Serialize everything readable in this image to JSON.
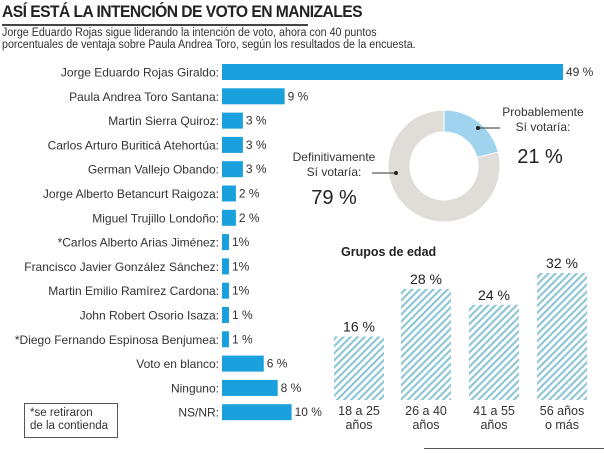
{
  "header": {
    "title": "ASÍ ESTÁ LA INTENCIÓN DE VOTO EN MANIZALES",
    "subtitle_line1": "Jorge Eduardo Rojas sigue liderando la intención de voto, ahora con 40 puntos",
    "subtitle_line2": "porcentuales de ventaja sobre Paula Andrea Toro, según los resultados de la encuesta."
  },
  "note": {
    "line1": "*se retiraron",
    "line2": "de la contienda"
  },
  "colors": {
    "bar": "#1aa0dc",
    "donut_probable": "#9fd3ee",
    "donut_definitive": "#e0ddd8",
    "hatch": "#8fc6d6"
  },
  "chart_data": [
    {
      "type": "bar",
      "orientation": "horizontal",
      "title": "Intención de voto",
      "categories": [
        "Jorge Eduardo Rojas Giraldo:",
        "Paula Andrea Toro Santana:",
        "Martin Sierra Quiroz:",
        "Carlos Arturo Buriticá Atehortúa:",
        "German Vallejo Obando:",
        "Jorge Alberto Betancurt Raigoza:",
        "Miguel Trujillo Londoño:",
        "*Carlos Alberto Arias Jiménez:",
        "Francisco Javier González Sánchez:",
        "Martin Emilio Ramírez Cardona:",
        "John Robert Osorio Isaza:",
        "*Diego Fernando Espinosa Benjumea:",
        "Voto en blanco:",
        "Ninguno:",
        "NS/NR:"
      ],
      "values": [
        49,
        9,
        3,
        3,
        3,
        2,
        2,
        1,
        1,
        1,
        1,
        1,
        6,
        8,
        10
      ],
      "value_labels": [
        "49 %",
        "9 %",
        "3 %",
        "3 %",
        "3 %",
        "2 %",
        "2 %",
        "1%",
        "1%",
        "1%",
        "1 %",
        "1 %",
        "6 %",
        "8 %",
        "10 %"
      ],
      "xlim": [
        0,
        49
      ],
      "grid": false
    },
    {
      "type": "pie",
      "subtype": "donut",
      "labels": [
        "Probablemente Sí votaría:",
        "Definitivamente Sí votaría:"
      ],
      "label_lines": [
        [
          "Probablemente",
          "Sí votaría:"
        ],
        [
          "Definitivamente",
          "Sí votaría:"
        ]
      ],
      "values": [
        21,
        79
      ],
      "value_labels": [
        "21 %",
        "79 %"
      ]
    },
    {
      "type": "bar",
      "title": "Grupos de edad",
      "categories": [
        [
          "18 a 25",
          "años"
        ],
        [
          "26 a 40",
          "años"
        ],
        [
          "41 a 55",
          "años"
        ],
        [
          "56 años",
          "o más"
        ]
      ],
      "values": [
        16,
        28,
        24,
        32
      ],
      "value_labels": [
        "16 %",
        "28 %",
        "24 %",
        "32 %"
      ],
      "ylim": [
        0,
        32
      ],
      "grid": false
    }
  ]
}
